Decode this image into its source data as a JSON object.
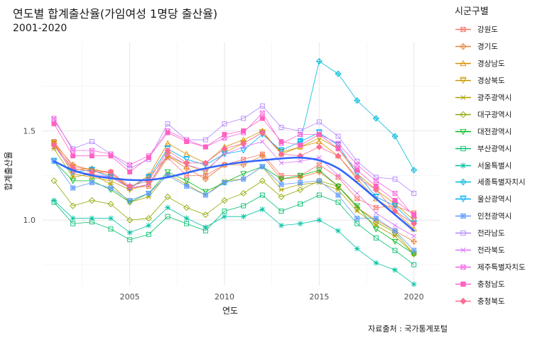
{
  "chart_data": {
    "type": "line",
    "title": "연도별 합계출산율(가임여성 1명당 출산율)",
    "subtitle": "2001-2020",
    "caption": "자료출처 : 국가통계포털",
    "xlabel": "연도",
    "ylabel": "합계출산율",
    "legend_title": "시군구별",
    "legend_position": "right",
    "grid": true,
    "xlim": [
      2000.4,
      2021.4
    ],
    "ylim": [
      0.635,
      1.995
    ],
    "x_ticks": [
      2005,
      2010,
      2015,
      2020
    ],
    "y_ticks": [
      1.0,
      1.5
    ],
    "x": [
      2001,
      2002,
      2003,
      2004,
      2005,
      2006,
      2007,
      2008,
      2009,
      2010,
      2011,
      2012,
      2013,
      2014,
      2015,
      2016,
      2017,
      2018,
      2019,
      2020
    ],
    "series": [
      {
        "name": "강원도",
        "color": "#F8766D",
        "shape": "square-x",
        "values": [
          1.44,
          1.3,
          1.28,
          1.27,
          1.18,
          1.19,
          1.35,
          1.25,
          1.25,
          1.31,
          1.34,
          1.37,
          1.25,
          1.25,
          1.31,
          1.24,
          1.12,
          1.07,
          1.08,
          1.04
        ]
      },
      {
        "name": "경기도",
        "color": "#EC8239",
        "shape": "diamond-plus",
        "values": [
          1.43,
          1.31,
          1.28,
          1.25,
          1.18,
          1.24,
          1.36,
          1.29,
          1.23,
          1.31,
          1.31,
          1.36,
          1.23,
          1.24,
          1.27,
          1.19,
          1.07,
          1.0,
          0.94,
          0.88
        ]
      },
      {
        "name": "경상남도",
        "color": "#DB8E00",
        "shape": "triangle",
        "values": [
          1.43,
          1.28,
          1.29,
          1.26,
          1.18,
          1.25,
          1.43,
          1.37,
          1.32,
          1.41,
          1.45,
          1.5,
          1.37,
          1.41,
          1.44,
          1.36,
          1.23,
          1.12,
          1.05,
          0.95
        ]
      },
      {
        "name": "경상북도",
        "color": "#C79800",
        "shape": "tri-down-bar",
        "values": [
          1.43,
          1.26,
          1.24,
          1.22,
          1.17,
          1.2,
          1.36,
          1.31,
          1.27,
          1.38,
          1.43,
          1.49,
          1.38,
          1.41,
          1.46,
          1.4,
          1.26,
          1.17,
          1.09,
          1.0
        ]
      },
      {
        "name": "광주광역시",
        "color": "#AEA200",
        "shape": "star-x",
        "values": [
          1.4,
          1.24,
          1.26,
          1.2,
          1.1,
          1.13,
          1.26,
          1.2,
          1.14,
          1.22,
          1.23,
          1.3,
          1.17,
          1.2,
          1.21,
          1.17,
          1.05,
          0.97,
          0.91,
          0.81
        ]
      },
      {
        "name": "대구광역시",
        "color": "#8DA900",
        "shape": "diamond",
        "values": [
          1.22,
          1.08,
          1.11,
          1.09,
          1.0,
          1.01,
          1.13,
          1.07,
          1.03,
          1.11,
          1.15,
          1.22,
          1.13,
          1.17,
          1.22,
          1.19,
          1.07,
          0.99,
          0.93,
          0.81
        ]
      },
      {
        "name": "대전광역시",
        "color": "#00B81F",
        "shape": "tri-down",
        "values": [
          1.33,
          1.22,
          1.22,
          1.17,
          1.1,
          1.15,
          1.27,
          1.22,
          1.16,
          1.21,
          1.26,
          1.3,
          1.23,
          1.25,
          1.28,
          1.19,
          1.08,
          0.95,
          0.88,
          0.81
        ]
      },
      {
        "name": "부산광역시",
        "color": "#00BE6C",
        "shape": "square",
        "values": [
          1.1,
          0.98,
          0.99,
          0.95,
          0.89,
          0.92,
          1.02,
          0.98,
          0.94,
          1.05,
          1.08,
          1.14,
          1.05,
          1.09,
          1.14,
          1.1,
          0.98,
          0.9,
          0.83,
          0.75
        ]
      },
      {
        "name": "서울특별시",
        "color": "#00C1A3",
        "shape": "asterisk",
        "values": [
          1.11,
          1.01,
          1.01,
          1.01,
          0.93,
          0.97,
          1.07,
          1.01,
          0.96,
          1.02,
          1.02,
          1.06,
          0.97,
          0.98,
          1.0,
          0.94,
          0.84,
          0.76,
          0.72,
          0.64
        ]
      },
      {
        "name": "세종특별자치시",
        "color": "#00BBDA",
        "shape": "diamond-plus",
        "values": [
          null,
          null,
          null,
          null,
          null,
          null,
          null,
          null,
          null,
          null,
          null,
          null,
          null,
          1.44,
          1.89,
          1.82,
          1.67,
          1.57,
          1.47,
          1.28
        ]
      },
      {
        "name": "울산광역시",
        "color": "#00ACFC",
        "shape": "tri-down-bar",
        "values": [
          1.33,
          1.27,
          1.28,
          1.24,
          1.18,
          1.24,
          1.4,
          1.34,
          1.31,
          1.37,
          1.39,
          1.48,
          1.39,
          1.44,
          1.49,
          1.42,
          1.26,
          1.13,
          1.08,
          0.98
        ]
      },
      {
        "name": "인천광역시",
        "color": "#619CFF",
        "shape": "star-square",
        "values": [
          1.33,
          1.18,
          1.21,
          1.18,
          1.11,
          1.15,
          1.25,
          1.19,
          1.14,
          1.21,
          1.23,
          1.3,
          1.2,
          1.21,
          1.22,
          1.14,
          1.01,
          1.01,
          0.94,
          0.83
        ]
      },
      {
        "name": "전라남도",
        "color": "#B385FF",
        "shape": "square",
        "values": [
          1.56,
          1.4,
          1.44,
          1.37,
          1.29,
          1.34,
          1.54,
          1.45,
          1.45,
          1.54,
          1.57,
          1.64,
          1.52,
          1.5,
          1.55,
          1.47,
          1.33,
          1.24,
          1.23,
          1.15
        ]
      },
      {
        "name": "전라북도",
        "color": "#DB72FB",
        "shape": "x",
        "values": [
          1.42,
          1.27,
          1.26,
          1.24,
          1.18,
          1.2,
          1.37,
          1.31,
          1.28,
          1.37,
          1.41,
          1.44,
          1.32,
          1.33,
          1.35,
          1.25,
          1.15,
          1.04,
          0.97,
          0.91
        ]
      },
      {
        "name": "제주특별자치도",
        "color": "#F564E3",
        "shape": "square-x",
        "values": [
          1.57,
          1.39,
          1.39,
          1.37,
          1.31,
          1.36,
          1.5,
          1.45,
          1.41,
          1.46,
          1.49,
          1.6,
          1.43,
          1.48,
          1.48,
          1.43,
          1.31,
          1.22,
          1.15,
          1.02
        ]
      },
      {
        "name": "충청남도",
        "color": "#FF61C3",
        "shape": "square-filled",
        "values": [
          1.54,
          1.36,
          1.36,
          1.36,
          1.27,
          1.35,
          1.49,
          1.44,
          1.41,
          1.48,
          1.5,
          1.57,
          1.44,
          1.42,
          1.48,
          1.4,
          1.28,
          1.19,
          1.11,
          1.03
        ]
      },
      {
        "name": "충청북도",
        "color": "#FF6C91",
        "shape": "diamond-filled",
        "values": [
          1.42,
          1.29,
          1.27,
          1.27,
          1.19,
          1.22,
          1.39,
          1.32,
          1.32,
          1.4,
          1.43,
          1.49,
          1.37,
          1.36,
          1.41,
          1.36,
          1.24,
          1.17,
          1.05,
          0.98
        ]
      }
    ],
    "trend": {
      "color": "#3366FF",
      "x": [
        2001,
        2002,
        2003,
        2004,
        2005,
        2006,
        2007,
        2008,
        2009,
        2010,
        2011,
        2012,
        2013,
        2014,
        2015,
        2016,
        2017,
        2018,
        2019,
        2020
      ],
      "values": [
        1.33,
        1.28,
        1.25,
        1.235,
        1.225,
        1.225,
        1.24,
        1.265,
        1.29,
        1.31,
        1.325,
        1.335,
        1.345,
        1.35,
        1.335,
        1.29,
        1.21,
        1.12,
        1.03,
        0.94
      ]
    }
  }
}
